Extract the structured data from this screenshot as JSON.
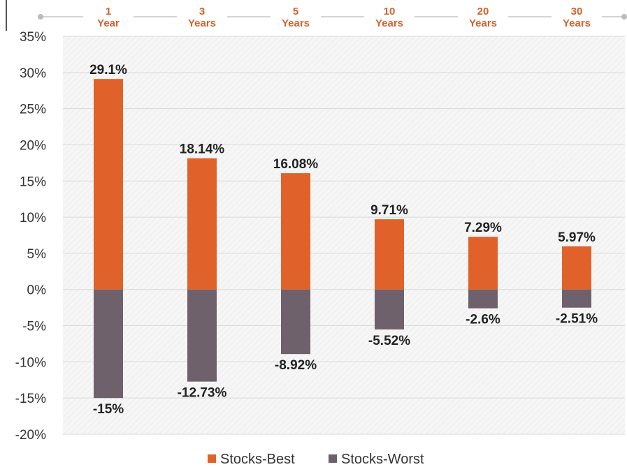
{
  "chart_data": {
    "type": "bar",
    "categories": [
      "1 Year",
      "3 Years",
      "5 Years",
      "10 Years",
      "20 Years",
      "30 Years"
    ],
    "category_label_lines": [
      [
        "1",
        "Year"
      ],
      [
        "3",
        "Years"
      ],
      [
        "5",
        "Years"
      ],
      [
        "10",
        "Years"
      ],
      [
        "20",
        "Years"
      ],
      [
        "30",
        "Years"
      ]
    ],
    "series": [
      {
        "name": "Stocks-Best",
        "color": "#e0622a",
        "values": [
          29.1,
          18.14,
          16.08,
          9.71,
          7.29,
          5.97
        ],
        "labels": [
          "29.1%",
          "18.14%",
          "16.08%",
          "9.71%",
          "7.29%",
          "5.97%"
        ]
      },
      {
        "name": "Stocks-Worst",
        "color": "#6f616b",
        "values": [
          -15,
          -12.73,
          -8.92,
          -5.52,
          -2.6,
          -2.51
        ],
        "labels": [
          "-15%",
          "-12.73%",
          "-8.92%",
          "-5.52%",
          "-2.6%",
          "-2.51%"
        ]
      }
    ],
    "ylim": [
      -20,
      35
    ],
    "yticks": [
      35,
      30,
      25,
      20,
      15,
      10,
      5,
      0,
      -5,
      -10,
      -15,
      -20
    ],
    "ytick_labels": [
      "35%",
      "30%",
      "25%",
      "20%",
      "15%",
      "10%",
      "5%",
      "0%",
      "-5%",
      "-10%",
      "-15%",
      "-20%"
    ],
    "grid": true,
    "legend": "bottom-center",
    "title": "",
    "xlabel": "",
    "ylabel": ""
  }
}
